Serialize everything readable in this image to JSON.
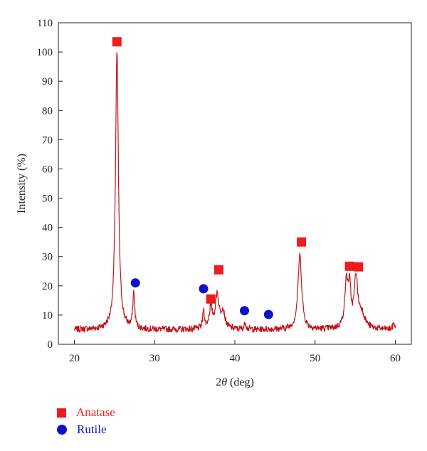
{
  "chart_data": {
    "type": "line",
    "title": "",
    "xlabel": "2θ (deg)",
    "xlabel_prefix": "2",
    "xlabel_symbol": "θ",
    "xlabel_suffix": " (deg)",
    "ylabel": "Intensity (%)",
    "xlim": [
      18,
      62
    ],
    "ylim": [
      0,
      110
    ],
    "xticks": [
      20,
      30,
      40,
      50,
      60
    ],
    "yticks": [
      0,
      10,
      20,
      30,
      40,
      50,
      60,
      70,
      80,
      90,
      100,
      110
    ],
    "grid": false,
    "legend_position": "bottom-left",
    "colors": {
      "line": "#c0141a",
      "anatase": "#ee1c1c",
      "rutile": "#1010c8"
    },
    "baseline": 5,
    "x_range": [
      20,
      60
    ],
    "peaks": [
      {
        "x": 25.3,
        "y": 100,
        "w": 0.22
      },
      {
        "x": 27.4,
        "y": 17.5,
        "w": 0.14
      },
      {
        "x": 36.1,
        "y": 11.5,
        "w": 0.12
      },
      {
        "x": 37.0,
        "y": 12,
        "w": 0.25
      },
      {
        "x": 37.8,
        "y": 16.5,
        "w": 0.25
      },
      {
        "x": 38.5,
        "y": 11,
        "w": 0.3
      },
      {
        "x": 41.3,
        "y": 7.5,
        "w": 0.12
      },
      {
        "x": 48.1,
        "y": 30.5,
        "w": 0.28
      },
      {
        "x": 53.9,
        "y": 20,
        "w": 0.25
      },
      {
        "x": 54.3,
        "y": 17,
        "w": 0.2
      },
      {
        "x": 55.1,
        "y": 22,
        "w": 0.25
      },
      {
        "x": 55.8,
        "y": 10,
        "w": 0.5
      },
      {
        "x": 59.8,
        "y": 7.5,
        "w": 0.1
      }
    ],
    "series": [
      {
        "name": "Anatase",
        "marker": "square",
        "points": [
          [
            25.3,
            103.5
          ],
          [
            37.0,
            15.5
          ],
          [
            38.0,
            25.5
          ],
          [
            48.3,
            35
          ],
          [
            54.3,
            26.7
          ],
          [
            55.4,
            26.5
          ]
        ]
      },
      {
        "name": "Rutile",
        "marker": "circle",
        "points": [
          [
            27.6,
            21
          ],
          [
            36.1,
            19
          ],
          [
            41.2,
            11.5
          ],
          [
            44.2,
            10.2
          ]
        ]
      }
    ]
  }
}
